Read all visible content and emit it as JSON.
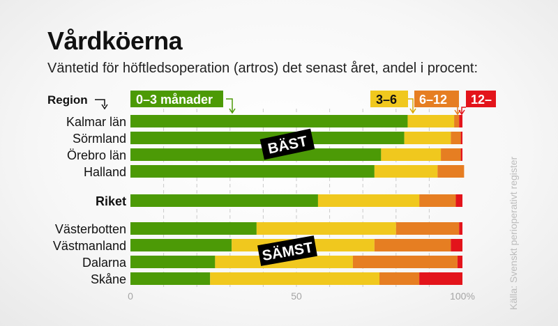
{
  "title": "Vårdköerna",
  "subtitle": "Väntetid för höftledsoperation (artros) det senast året, andel i procent:",
  "source": "Källa: Svenskt perioperativt register",
  "region_header": "Region",
  "colors": {
    "green": "#4c9a06",
    "yellow": "#f0c81e",
    "orange": "#e67e22",
    "red": "#e3141b",
    "grid": "#c9c9c9",
    "label_bg": "#000000",
    "label_fg": "#ffffff"
  },
  "annotations": [
    {
      "text": "BÄST",
      "near_row": 1
    },
    {
      "text": "SÄMST",
      "near_row": 6
    }
  ],
  "chart_data": {
    "type": "bar",
    "orientation": "horizontal",
    "stacked": true,
    "xlim": [
      0,
      100
    ],
    "x_ticks": [
      "0",
      "50",
      "100%"
    ],
    "grid": "dashed vertical",
    "legend_position": "top",
    "categories": [
      "Kalmar län",
      "Sörmland",
      "Örebro län",
      "Halland",
      "Riket",
      "Västerbotten",
      "Västmanland",
      "Dalarna",
      "Skåne"
    ],
    "bold_categories": [
      "Riket"
    ],
    "series": [
      {
        "name": "0–3 månader",
        "color": "#4c9a06",
        "values": [
          83.5,
          82.5,
          75.5,
          73.5,
          56.5,
          38,
          30.5,
          25.5,
          24
        ]
      },
      {
        "name": "3–6",
        "color": "#f0c81e",
        "values": [
          14,
          14,
          18,
          19,
          30.5,
          42,
          43,
          41.5,
          51
        ]
      },
      {
        "name": "6–12",
        "color": "#e67e22",
        "values": [
          1.5,
          3,
          6,
          8,
          11,
          19,
          23,
          31.5,
          12
        ]
      },
      {
        "name": "12–",
        "color": "#e3141b",
        "values": [
          1,
          0.5,
          0.5,
          0,
          2,
          1,
          3.5,
          1.5,
          13
        ]
      }
    ]
  }
}
